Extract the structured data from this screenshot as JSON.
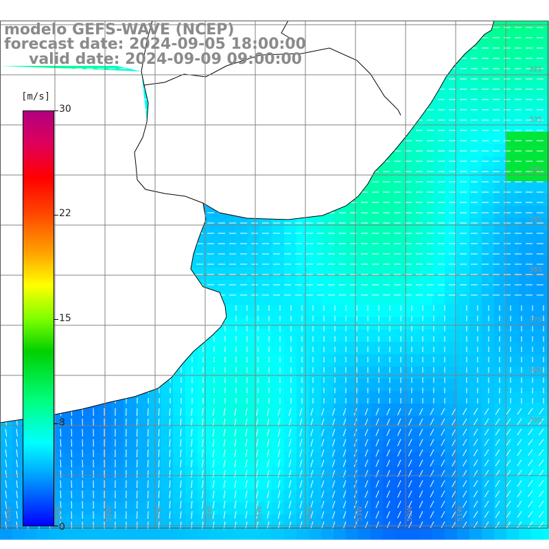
{
  "title": {
    "line1": "modelo GEFS-WAVE (NCEP)",
    "line2": "forecast date: 2024-09-05 18:00:00",
    "line3": "valid date: 2024-09-09 09:00:00"
  },
  "colorbar": {
    "unit": "[m/s]",
    "ticks": [
      "30",
      "22",
      "15",
      "8",
      "0"
    ],
    "tick_values": [
      30,
      22,
      15,
      8,
      0
    ],
    "min": 0,
    "max": 30
  },
  "colors": {
    "land": "#ffffff",
    "grid": "#808080",
    "coast": "#000000",
    "arrow": "#ffffff",
    "title": "#8a8a8a"
  },
  "latitude_labels": [
    "32S",
    "33S",
    "34S",
    "35S",
    "36S",
    "37S",
    "38S",
    "39S"
  ],
  "longitude_labels": [
    "60W",
    "59W",
    "58W",
    "57W",
    "56W",
    "55W",
    "54W",
    "53W",
    "52W",
    "51W"
  ],
  "field": {
    "variable": "wind speed",
    "units": "m/s",
    "typical_north": 7,
    "typical_south": 4,
    "max_local": 11
  }
}
